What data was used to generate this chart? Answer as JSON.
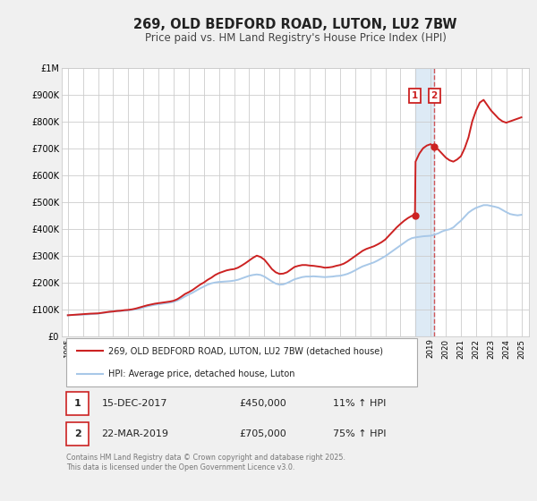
{
  "title": "269, OLD BEDFORD ROAD, LUTON, LU2 7BW",
  "subtitle": "Price paid vs. HM Land Registry's House Price Index (HPI)",
  "ylim": [
    0,
    1000000
  ],
  "yticks": [
    0,
    100000,
    200000,
    300000,
    400000,
    500000,
    600000,
    700000,
    800000,
    900000,
    1000000
  ],
  "ytick_labels": [
    "£0",
    "£100K",
    "£200K",
    "£300K",
    "£400K",
    "£500K",
    "£600K",
    "£700K",
    "£800K",
    "£900K",
    "£1M"
  ],
  "xlim_start": 1994.6,
  "xlim_end": 2025.5,
  "xticks": [
    1995,
    1996,
    1997,
    1998,
    1999,
    2000,
    2001,
    2002,
    2003,
    2004,
    2005,
    2006,
    2007,
    2008,
    2009,
    2010,
    2011,
    2012,
    2013,
    2014,
    2015,
    2016,
    2017,
    2018,
    2019,
    2020,
    2021,
    2022,
    2023,
    2024,
    2025
  ],
  "background_color": "#f0f0f0",
  "plot_bg_color": "#ffffff",
  "grid_color": "#cccccc",
  "hpi_color": "#a8c8e8",
  "price_color": "#cc2222",
  "transaction1_date": 2017.96,
  "transaction1_price": 450000,
  "transaction2_date": 2019.23,
  "transaction2_price": 705000,
  "shade_start": 2017.96,
  "shade_end": 2019.23,
  "legend_label1": "269, OLD BEDFORD ROAD, LUTON, LU2 7BW (detached house)",
  "legend_label2": "HPI: Average price, detached house, Luton",
  "table_row1": [
    "1",
    "15-DEC-2017",
    "£450,000",
    "11% ↑ HPI"
  ],
  "table_row2": [
    "2",
    "22-MAR-2019",
    "£705,000",
    "75% ↑ HPI"
  ],
  "footer": "Contains HM Land Registry data © Crown copyright and database right 2025.\nThis data is licensed under the Open Government Licence v3.0.",
  "hpi_data": [
    [
      1995.0,
      78000
    ],
    [
      1995.25,
      79000
    ],
    [
      1995.5,
      79500
    ],
    [
      1995.75,
      80000
    ],
    [
      1996.0,
      80500
    ],
    [
      1996.25,
      81000
    ],
    [
      1996.5,
      82000
    ],
    [
      1996.75,
      83000
    ],
    [
      1997.0,
      84000
    ],
    [
      1997.25,
      86000
    ],
    [
      1997.5,
      88000
    ],
    [
      1997.75,
      90000
    ],
    [
      1998.0,
      92000
    ],
    [
      1998.25,
      93000
    ],
    [
      1998.5,
      94000
    ],
    [
      1998.75,
      95000
    ],
    [
      1999.0,
      96000
    ],
    [
      1999.25,
      98000
    ],
    [
      1999.5,
      100000
    ],
    [
      1999.75,
      103000
    ],
    [
      2000.0,
      107000
    ],
    [
      2000.25,
      111000
    ],
    [
      2000.5,
      114000
    ],
    [
      2000.75,
      117000
    ],
    [
      2001.0,
      119000
    ],
    [
      2001.25,
      121000
    ],
    [
      2001.5,
      123000
    ],
    [
      2001.75,
      125000
    ],
    [
      2002.0,
      128000
    ],
    [
      2002.25,
      133000
    ],
    [
      2002.5,
      140000
    ],
    [
      2002.75,
      148000
    ],
    [
      2003.0,
      155000
    ],
    [
      2003.25,
      162000
    ],
    [
      2003.5,
      170000
    ],
    [
      2003.75,
      178000
    ],
    [
      2004.0,
      185000
    ],
    [
      2004.25,
      192000
    ],
    [
      2004.5,
      197000
    ],
    [
      2004.75,
      200000
    ],
    [
      2005.0,
      202000
    ],
    [
      2005.25,
      203000
    ],
    [
      2005.5,
      204000
    ],
    [
      2005.75,
      205000
    ],
    [
      2006.0,
      207000
    ],
    [
      2006.25,
      210000
    ],
    [
      2006.5,
      215000
    ],
    [
      2006.75,
      220000
    ],
    [
      2007.0,
      225000
    ],
    [
      2007.25,
      228000
    ],
    [
      2007.5,
      230000
    ],
    [
      2007.75,
      228000
    ],
    [
      2008.0,
      222000
    ],
    [
      2008.25,
      213000
    ],
    [
      2008.5,
      204000
    ],
    [
      2008.75,
      196000
    ],
    [
      2009.0,
      192000
    ],
    [
      2009.25,
      193000
    ],
    [
      2009.5,
      198000
    ],
    [
      2009.75,
      205000
    ],
    [
      2010.0,
      212000
    ],
    [
      2010.25,
      216000
    ],
    [
      2010.5,
      220000
    ],
    [
      2010.75,
      222000
    ],
    [
      2011.0,
      222000
    ],
    [
      2011.25,
      223000
    ],
    [
      2011.5,
      222000
    ],
    [
      2011.75,
      221000
    ],
    [
      2012.0,
      220000
    ],
    [
      2012.25,
      221000
    ],
    [
      2012.5,
      222000
    ],
    [
      2012.75,
      224000
    ],
    [
      2013.0,
      225000
    ],
    [
      2013.25,
      228000
    ],
    [
      2013.5,
      232000
    ],
    [
      2013.75,
      238000
    ],
    [
      2014.0,
      245000
    ],
    [
      2014.25,
      253000
    ],
    [
      2014.5,
      260000
    ],
    [
      2014.75,
      265000
    ],
    [
      2015.0,
      270000
    ],
    [
      2015.25,
      275000
    ],
    [
      2015.5,
      282000
    ],
    [
      2015.75,
      290000
    ],
    [
      2016.0,
      298000
    ],
    [
      2016.25,
      308000
    ],
    [
      2016.5,
      318000
    ],
    [
      2016.75,
      328000
    ],
    [
      2017.0,
      338000
    ],
    [
      2017.25,
      348000
    ],
    [
      2017.5,
      358000
    ],
    [
      2017.75,
      365000
    ],
    [
      2018.0,
      368000
    ],
    [
      2018.25,
      370000
    ],
    [
      2018.5,
      372000
    ],
    [
      2018.75,
      373000
    ],
    [
      2019.0,
      374000
    ],
    [
      2019.25,
      378000
    ],
    [
      2019.5,
      383000
    ],
    [
      2019.75,
      390000
    ],
    [
      2020.0,
      395000
    ],
    [
      2020.25,
      398000
    ],
    [
      2020.5,
      405000
    ],
    [
      2020.75,
      418000
    ],
    [
      2021.0,
      430000
    ],
    [
      2021.25,
      445000
    ],
    [
      2021.5,
      460000
    ],
    [
      2021.75,
      470000
    ],
    [
      2022.0,
      478000
    ],
    [
      2022.25,
      483000
    ],
    [
      2022.5,
      488000
    ],
    [
      2022.75,
      488000
    ],
    [
      2023.0,
      485000
    ],
    [
      2023.25,
      482000
    ],
    [
      2023.5,
      478000
    ],
    [
      2023.75,
      470000
    ],
    [
      2024.0,
      462000
    ],
    [
      2024.25,
      455000
    ],
    [
      2024.5,
      452000
    ],
    [
      2024.75,
      450000
    ],
    [
      2025.0,
      452000
    ]
  ],
  "price_data": [
    [
      1995.0,
      78000
    ],
    [
      1995.25,
      79000
    ],
    [
      1995.5,
      80000
    ],
    [
      1995.75,
      81000
    ],
    [
      1996.0,
      82000
    ],
    [
      1996.25,
      83000
    ],
    [
      1996.5,
      84000
    ],
    [
      1996.75,
      84500
    ],
    [
      1997.0,
      85000
    ],
    [
      1997.25,
      87000
    ],
    [
      1997.5,
      89000
    ],
    [
      1997.75,
      91000
    ],
    [
      1998.0,
      92000
    ],
    [
      1998.25,
      94000
    ],
    [
      1998.5,
      95000
    ],
    [
      1998.75,
      97000
    ],
    [
      1999.0,
      98000
    ],
    [
      1999.25,
      100000
    ],
    [
      1999.5,
      103000
    ],
    [
      1999.75,
      107000
    ],
    [
      2000.0,
      111000
    ],
    [
      2000.25,
      115000
    ],
    [
      2000.5,
      118000
    ],
    [
      2000.75,
      121000
    ],
    [
      2001.0,
      123000
    ],
    [
      2001.25,
      125000
    ],
    [
      2001.5,
      127000
    ],
    [
      2001.75,
      129000
    ],
    [
      2002.0,
      132000
    ],
    [
      2002.25,
      138000
    ],
    [
      2002.5,
      147000
    ],
    [
      2002.75,
      157000
    ],
    [
      2003.0,
      164000
    ],
    [
      2003.25,
      172000
    ],
    [
      2003.5,
      182000
    ],
    [
      2003.75,
      192000
    ],
    [
      2004.0,
      200000
    ],
    [
      2004.25,
      210000
    ],
    [
      2004.5,
      218000
    ],
    [
      2004.75,
      228000
    ],
    [
      2005.0,
      235000
    ],
    [
      2005.25,
      240000
    ],
    [
      2005.5,
      245000
    ],
    [
      2005.75,
      248000
    ],
    [
      2006.0,
      250000
    ],
    [
      2006.25,
      255000
    ],
    [
      2006.5,
      263000
    ],
    [
      2006.75,
      272000
    ],
    [
      2007.0,
      282000
    ],
    [
      2007.25,
      292000
    ],
    [
      2007.5,
      300000
    ],
    [
      2007.75,
      295000
    ],
    [
      2008.0,
      285000
    ],
    [
      2008.25,
      268000
    ],
    [
      2008.5,
      250000
    ],
    [
      2008.75,
      238000
    ],
    [
      2009.0,
      232000
    ],
    [
      2009.25,
      233000
    ],
    [
      2009.5,
      238000
    ],
    [
      2009.75,
      248000
    ],
    [
      2010.0,
      258000
    ],
    [
      2010.25,
      262000
    ],
    [
      2010.5,
      265000
    ],
    [
      2010.75,
      265000
    ],
    [
      2011.0,
      263000
    ],
    [
      2011.25,
      262000
    ],
    [
      2011.5,
      260000
    ],
    [
      2011.75,
      258000
    ],
    [
      2012.0,
      255000
    ],
    [
      2012.25,
      256000
    ],
    [
      2012.5,
      258000
    ],
    [
      2012.75,
      262000
    ],
    [
      2013.0,
      265000
    ],
    [
      2013.25,
      270000
    ],
    [
      2013.5,
      278000
    ],
    [
      2013.75,
      288000
    ],
    [
      2014.0,
      298000
    ],
    [
      2014.25,
      308000
    ],
    [
      2014.5,
      318000
    ],
    [
      2014.75,
      325000
    ],
    [
      2015.0,
      330000
    ],
    [
      2015.25,
      335000
    ],
    [
      2015.5,
      342000
    ],
    [
      2015.75,
      350000
    ],
    [
      2016.0,
      360000
    ],
    [
      2016.25,
      375000
    ],
    [
      2016.5,
      390000
    ],
    [
      2016.75,
      405000
    ],
    [
      2017.0,
      418000
    ],
    [
      2017.25,
      430000
    ],
    [
      2017.5,
      440000
    ],
    [
      2017.75,
      448000
    ],
    [
      2017.96,
      450000
    ],
    [
      2018.0,
      650000
    ],
    [
      2018.25,
      680000
    ],
    [
      2018.5,
      700000
    ],
    [
      2018.75,
      710000
    ],
    [
      2019.0,
      715000
    ],
    [
      2019.23,
      705000
    ],
    [
      2019.5,
      695000
    ],
    [
      2019.75,
      680000
    ],
    [
      2020.0,
      665000
    ],
    [
      2020.25,
      655000
    ],
    [
      2020.5,
      650000
    ],
    [
      2020.75,
      658000
    ],
    [
      2021.0,
      670000
    ],
    [
      2021.25,
      700000
    ],
    [
      2021.5,
      740000
    ],
    [
      2021.75,
      800000
    ],
    [
      2022.0,
      840000
    ],
    [
      2022.25,
      870000
    ],
    [
      2022.5,
      880000
    ],
    [
      2022.75,
      860000
    ],
    [
      2023.0,
      840000
    ],
    [
      2023.25,
      825000
    ],
    [
      2023.5,
      810000
    ],
    [
      2023.75,
      800000
    ],
    [
      2024.0,
      795000
    ],
    [
      2024.25,
      800000
    ],
    [
      2024.5,
      805000
    ],
    [
      2024.75,
      810000
    ],
    [
      2025.0,
      815000
    ]
  ]
}
